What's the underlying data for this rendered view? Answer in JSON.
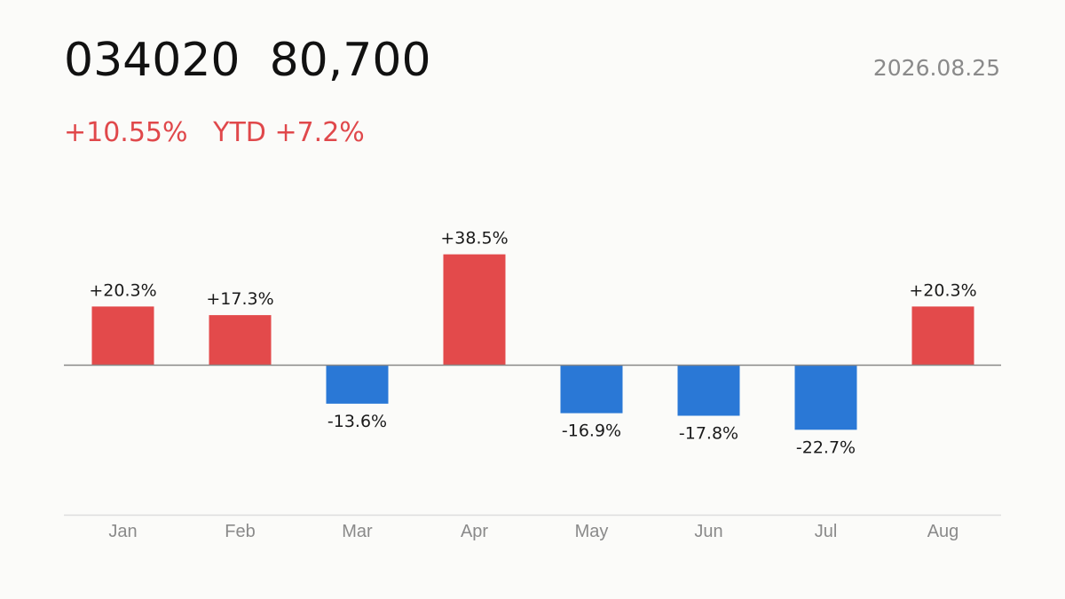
{
  "header": {
    "ticker": "034020",
    "price": "80,700",
    "date": "2026.08.25",
    "change": "+10.55%",
    "ytd_label": "YTD",
    "ytd_value": "+7.2%"
  },
  "colors": {
    "positive": "#e34a4b",
    "negative": "#2a78d6",
    "baseline": "#888888",
    "axis": "#dddddd",
    "label": "#1a1a1a",
    "tick": "#8a8a8a"
  },
  "chart_data": {
    "type": "bar",
    "categories": [
      "Jan",
      "Feb",
      "Mar",
      "Apr",
      "May",
      "Jun",
      "Jul",
      "Aug"
    ],
    "values": [
      20.3,
      17.3,
      -13.6,
      38.5,
      -16.9,
      -17.8,
      -22.7,
      20.3
    ],
    "value_labels": [
      "+20.3%",
      "+17.3%",
      "-13.6%",
      "+38.5%",
      "-16.9%",
      "-17.8%",
      "-22.7%",
      "+20.3%"
    ],
    "title": "",
    "xlabel": "",
    "ylabel": "",
    "grid": false,
    "legend": "none"
  }
}
